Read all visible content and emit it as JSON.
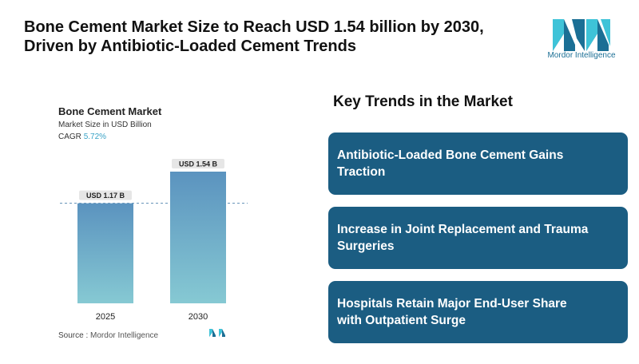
{
  "header": {
    "headline_line1": "Bone Cement Market Size to Reach USD 1.54 billion by 2030,",
    "headline_line2": "Driven by Antibiotic-Loaded Cement Trends"
  },
  "brand": {
    "logo_icon": "mordor-intelligence-logo",
    "logo_text": "Mordor Intelligence",
    "colors": {
      "dark": "#1b5d82",
      "light": "#3ec3d8",
      "mid": "#2a8fbf"
    }
  },
  "chart_data": {
    "type": "bar",
    "title": "Bone Cement Market",
    "subtitle": "Market Size in USD Billion",
    "cagr_label": "CAGR",
    "cagr_value": "5.72%",
    "categories": [
      "2025",
      "2030"
    ],
    "values": [
      1.17,
      1.54
    ],
    "data_labels": [
      "USD 1.17 B",
      "USD 1.54 B"
    ],
    "xlabel": "",
    "ylabel": "",
    "grid": false,
    "reference_line": "dashed line at 2025 value",
    "bar_gradient": [
      "#5b93bf",
      "#86c9d3"
    ]
  },
  "source": {
    "label": "Source :",
    "name": "Mordor Intelligence"
  },
  "trends": {
    "title": "Key Trends in the Market",
    "items": [
      {
        "line1": "Antibiotic-Loaded Bone Cement Gains",
        "line2": "Traction"
      },
      {
        "line1": "Increase in Joint Replacement and Trauma",
        "line2": "Surgeries"
      },
      {
        "line1": "Hospitals Retain Major End-User Share",
        "line2": "with Outpatient Surge"
      }
    ]
  }
}
